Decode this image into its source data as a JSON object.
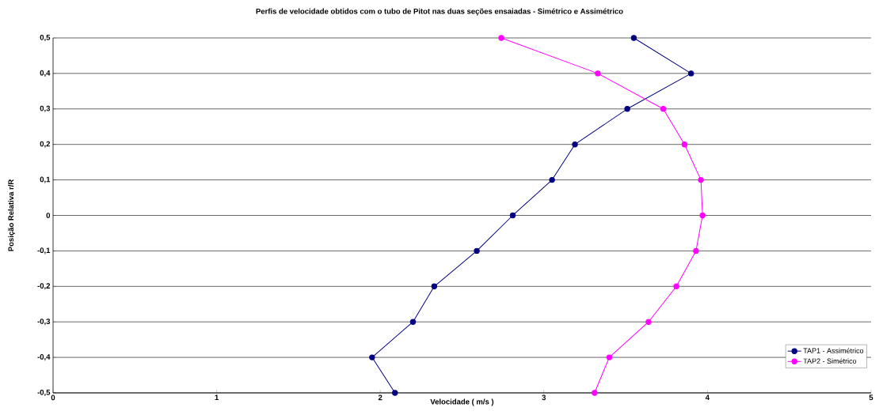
{
  "chart_data": {
    "type": "line",
    "title": "Perfis de velocidade obtidos com o tubo de Pitot nas duas seções ensaiadas - Simétrico e Assimétrico",
    "xlabel": "Velocidade ( m/s )",
    "ylabel": "Posição Relativa r/R",
    "xlim": [
      0,
      5
    ],
    "xticks": [
      0,
      1,
      2,
      3,
      4,
      5
    ],
    "ylim": [
      -0.5,
      0.5
    ],
    "yticks": [
      {
        "value": -0.5,
        "label": "-0,5"
      },
      {
        "value": -0.4,
        "label": "-0,4"
      },
      {
        "value": -0.3,
        "label": "-0,3"
      },
      {
        "value": -0.2,
        "label": "-0,2"
      },
      {
        "value": -0.1,
        "label": "-0,1"
      },
      0,
      {
        "value": 0.1,
        "label": "0,1"
      },
      {
        "value": 0.2,
        "label": "0,2"
      },
      {
        "value": 0.3,
        "label": "0,3"
      },
      {
        "value": 0.4,
        "label": "0,4"
      },
      {
        "value": 0.5,
        "label": "0,5"
      }
    ],
    "grid": "y",
    "legend": "bottom right",
    "marker": "circle",
    "line_style": "solid",
    "series": [
      {
        "name": "TAP1 - Assimétrico",
        "color": "#000080",
        "x": [
          3.55,
          3.9,
          3.51,
          3.19,
          3.05,
          2.81,
          2.59,
          2.33,
          2.2,
          1.95,
          2.09
        ],
        "values": [
          0.5,
          0.4,
          0.3,
          0.2,
          0.1,
          0,
          -0.1,
          -0.2,
          -0.3,
          -0.4,
          -0.5
        ]
      },
      {
        "name": "TAP2 - Simétrico",
        "color": "#ff00ff",
        "x": [
          2.74,
          3.33,
          3.73,
          3.86,
          3.96,
          3.97,
          3.93,
          3.81,
          3.64,
          3.4,
          3.31
        ],
        "values": [
          0.5,
          0.4,
          0.3,
          0.2,
          0.1,
          0,
          -0.1,
          -0.2,
          -0.3,
          -0.4,
          -0.5
        ]
      }
    ]
  }
}
